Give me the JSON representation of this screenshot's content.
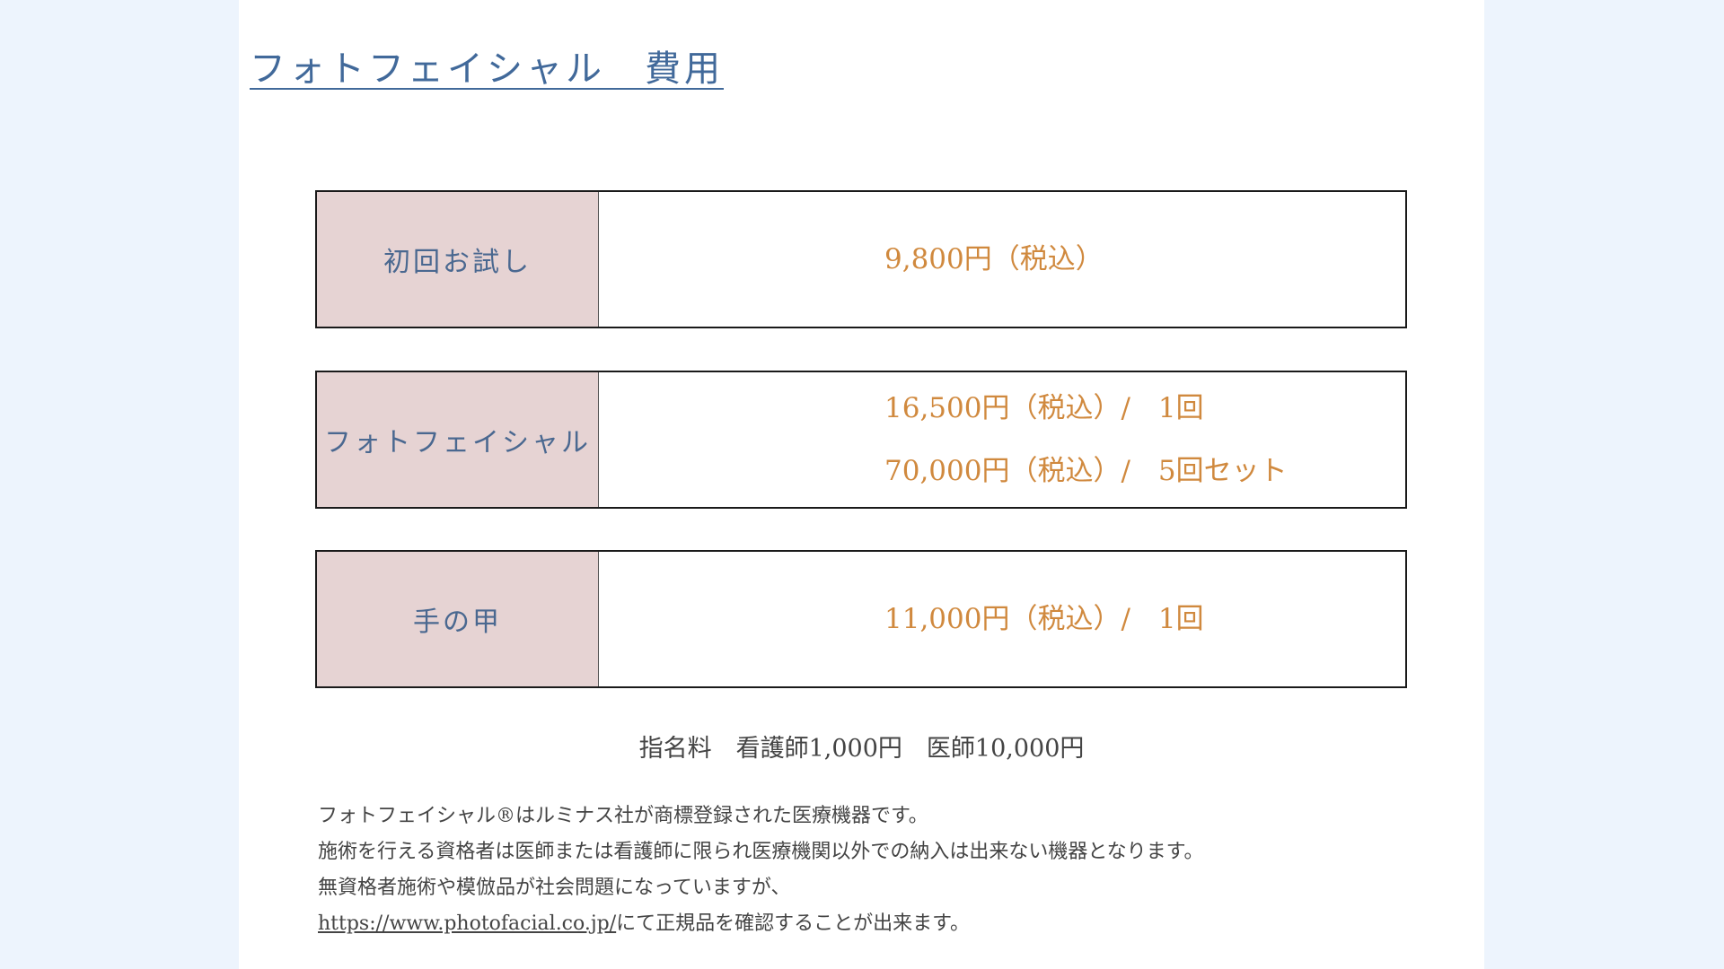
{
  "title": "フォトフェイシャル　費用",
  "colors": {
    "title": "#41699a",
    "label_bg": "#e6d3d3",
    "price": "#d0893e",
    "background": "#edf4fd"
  },
  "prices": [
    {
      "label": "初回お試し",
      "values": [
        "9,800円（税込）"
      ]
    },
    {
      "label": "フォトフェイシャル",
      "values": [
        "16,500円（税込）/　1回",
        "70,000円（税込）/　5回セット"
      ]
    },
    {
      "label": "手の甲",
      "values": [
        "11,000円（税込）/　1回"
      ]
    }
  ],
  "nomination_fee": "指名料　看護師1,000円　医師10,000円",
  "notes": {
    "line1": "フォトフェイシャル®はルミナス社が商標登録された医療機器です。",
    "line2": "施術を行える資格者は医師または看護師に限られ医療機関以外での納入は出来ない機器となります。",
    "line3": "無資格者施術や模倣品が社会問題になっていますが、",
    "link": "https://www.photofacial.co.jp/",
    "line4_rest": "にて正規品を確認することが出来ます。"
  }
}
